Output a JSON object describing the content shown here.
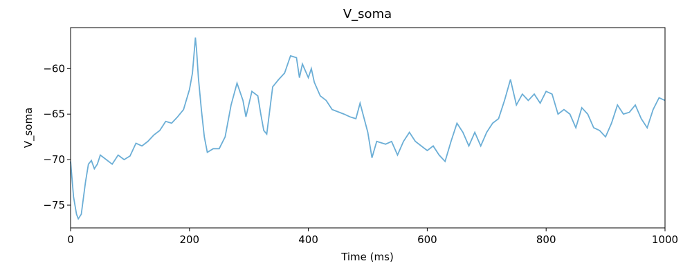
{
  "chart_data": {
    "type": "line",
    "title": "V_soma",
    "x_label": "Time (ms)",
    "y_label": "V_soma",
    "x": [
      0,
      5,
      10,
      13,
      18,
      22,
      25,
      30,
      35,
      40,
      45,
      50,
      60,
      70,
      80,
      90,
      100,
      110,
      120,
      130,
      140,
      150,
      160,
      170,
      180,
      190,
      200,
      205,
      210,
      212,
      215,
      220,
      225,
      230,
      240,
      250,
      260,
      270,
      280,
      290,
      295,
      305,
      315,
      320,
      325,
      330,
      340,
      350,
      360,
      370,
      380,
      385,
      390,
      400,
      405,
      410,
      420,
      430,
      440,
      460,
      470,
      480,
      487,
      500,
      507,
      515,
      530,
      540,
      550,
      560,
      570,
      580,
      590,
      600,
      610,
      620,
      630,
      640,
      650,
      660,
      670,
      680,
      690,
      700,
      710,
      720,
      730,
      740,
      750,
      760,
      770,
      780,
      790,
      800,
      810,
      820,
      830,
      840,
      850,
      860,
      870,
      880,
      890,
      900,
      910,
      920,
      930,
      940,
      950,
      960,
      970,
      980,
      990,
      1000
    ],
    "series": [
      {
        "name": "V_soma",
        "color": "#6baed6",
        "values": [
          -70.2,
          -74.1,
          -76,
          -76.5,
          -76,
          -74,
          -72.5,
          -70.5,
          -70.1,
          -71,
          -70.5,
          -69.5,
          -70,
          -70.5,
          -69.5,
          -70,
          -69.6,
          -68.2,
          -68.5,
          -68,
          -67.3,
          -66.8,
          -65.8,
          -66,
          -65.3,
          -64.5,
          -62.3,
          -60.5,
          -56.6,
          -58,
          -61,
          -64.5,
          -67.5,
          -69.2,
          -68.8,
          -68.8,
          -67.5,
          -64,
          -61.6,
          -63.5,
          -65.3,
          -62.5,
          -63,
          -65,
          -66.8,
          -67.2,
          -62,
          -61.2,
          -60.5,
          -58.6,
          -58.8,
          -61,
          -59.5,
          -61,
          -60,
          -61.5,
          -63,
          -63.5,
          -64.5,
          -65,
          -65.3,
          -65.5,
          -63.8,
          -67,
          -69.8,
          -68,
          -68.3,
          -68,
          -69.5,
          -68,
          -67,
          -68,
          -68.5,
          -69,
          -68.5,
          -69.5,
          -70.2,
          -68,
          -66,
          -67,
          -68.5,
          -67,
          -68.5,
          -67,
          -66,
          -65.5,
          -63.5,
          -61.2,
          -64,
          -62.8,
          -63.5,
          -62.8,
          -63.8,
          -62.5,
          -62.8,
          -65,
          -64.5,
          -65,
          -66.5,
          -64.3,
          -65,
          -66.5,
          -66.8,
          -67.5,
          -66,
          -64,
          -65,
          -64.8,
          -64,
          -65.5,
          -66.5,
          -64.5,
          -63.2,
          -63.5
        ]
      }
    ],
    "xlim": [
      0,
      1000
    ],
    "ylim": [
      -77.5,
      -55.5
    ],
    "xticks": [
      0,
      200,
      400,
      600,
      800,
      1000
    ],
    "yticks": [
      {
        "value": -75,
        "label": "−75"
      },
      {
        "value": -70,
        "label": "−70"
      },
      {
        "value": -65,
        "label": "−65"
      },
      {
        "value": -60,
        "label": "−60"
      }
    ]
  }
}
